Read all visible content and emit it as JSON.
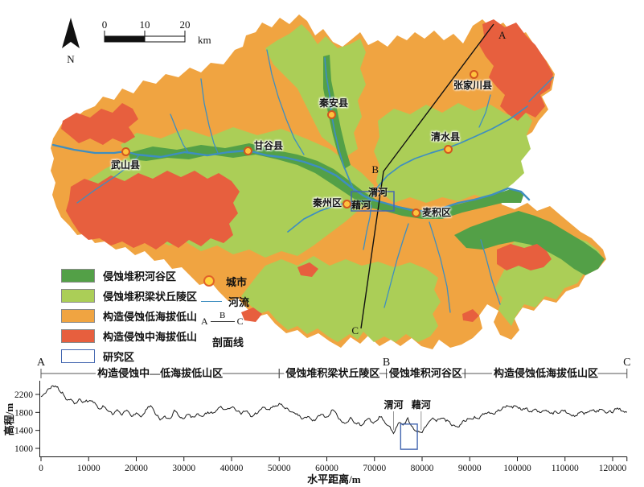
{
  "map": {
    "north_label": "N",
    "scalebar": {
      "t0": "0",
      "t10": "10",
      "t20": "20",
      "unit": "km"
    },
    "line_labels": {
      "a": "A",
      "b": "B",
      "c": "C"
    },
    "cities": [
      {
        "name": "武山县"
      },
      {
        "name": "甘谷县"
      },
      {
        "name": "秦安县"
      },
      {
        "name": "清水县"
      },
      {
        "name": "张家川县"
      },
      {
        "name": "秦州区"
      },
      {
        "name": "麦积区"
      }
    ],
    "river_labels": [
      {
        "text": "渭河"
      },
      {
        "text": "藉河"
      }
    ],
    "colors": {
      "valley_green": "#53a047",
      "hills_light_green": "#abce57",
      "low_mountain_orange": "#f0a441",
      "mid_mountain_red": "#e75f3e",
      "river_blue": "#3e8ec0",
      "study_area_blue": "#4467b0"
    }
  },
  "legend": {
    "areas": [
      {
        "label": "侵蚀堆积河谷区",
        "color": "#53a047"
      },
      {
        "label": "侵蚀堆积梁状丘陵区",
        "color": "#abce57"
      },
      {
        "label": "构造侵蚀低海拔低山",
        "color": "#f0a441"
      },
      {
        "label": "构造侵蚀中海拔低山",
        "color": "#e75f3e"
      },
      {
        "label": "研究区",
        "color": "#ffffff",
        "border": "#4467b0"
      }
    ],
    "symbols": {
      "city": "城市",
      "river": "河流",
      "profile_label": "剖面线",
      "a": "A",
      "b": "B",
      "c": "C"
    }
  },
  "chart_data": {
    "type": "line",
    "xlabel": "水平距离/m",
    "ylabel": "高程/m",
    "xlim": [
      0,
      123000
    ],
    "ylim": [
      800,
      2500
    ],
    "xticks": [
      0,
      10000,
      20000,
      30000,
      40000,
      50000,
      60000,
      70000,
      80000,
      90000,
      100000,
      110000,
      120000
    ],
    "yticks": [
      1000,
      1400,
      1800,
      2200
    ],
    "x_step": 1000,
    "elevations": [
      2150,
      2230,
      2330,
      2390,
      2260,
      2150,
      2080,
      1990,
      2100,
      2040,
      2050,
      2020,
      1890,
      1950,
      1840,
      1750,
      1860,
      1740,
      1850,
      1710,
      1790,
      1700,
      1860,
      1950,
      1760,
      1630,
      1720,
      1660,
      1850,
      1710,
      1660,
      1760,
      1700,
      1770,
      1710,
      1810,
      1780,
      1860,
      1900,
      1870,
      1910,
      1830,
      1760,
      1830,
      1710,
      1790,
      1860,
      1910,
      1860,
      1930,
      2000,
      1910,
      1850,
      1800,
      1730,
      1660,
      1710,
      1610,
      1700,
      1760,
      1700,
      1850,
      1780,
      1610,
      1560,
      1690,
      1560,
      1510,
      1610,
      1660,
      1590,
      1710,
      1610,
      1500,
      1330,
      1560,
      1520,
      1680,
      1480,
      1360,
      1350,
      1520,
      1650,
      1600,
      1670,
      1600,
      1540,
      1490,
      1530,
      1600,
      1660,
      1710,
      1660,
      1760,
      1810,
      1760,
      1860,
      1920,
      1940,
      1900,
      1920,
      1850,
      1900,
      1810,
      1860,
      1800,
      1850,
      1780,
      1830,
      1800,
      1850,
      1760,
      1710,
      1790,
      1760,
      1810,
      1860,
      1820,
      1850,
      1800,
      1790,
      1900,
      1830,
      1800
    ],
    "zones": [
      {
        "label": "构造侵蚀中—低海拔低山区",
        "from": 0,
        "to": 50000
      },
      {
        "label": "侵蚀堆积梁状丘陵区",
        "from": 50000,
        "to": 72500
      },
      {
        "label": "侵蚀堆积河谷区",
        "from": 72500,
        "to": 89000
      },
      {
        "label": "构造侵蚀低海拔低山区",
        "from": 89000,
        "to": 123000
      }
    ],
    "markers": [
      {
        "label": "A",
        "x": 0
      },
      {
        "label": "B",
        "x": 72500
      },
      {
        "label": "C",
        "x": 123000
      }
    ],
    "annotations": [
      {
        "label": "渭河",
        "x": 74000
      },
      {
        "label": "藉河",
        "x": 79800
      }
    ],
    "study_rect": {
      "x0": 75500,
      "x1": 79000,
      "elev0": 980,
      "elev1": 1540
    }
  }
}
